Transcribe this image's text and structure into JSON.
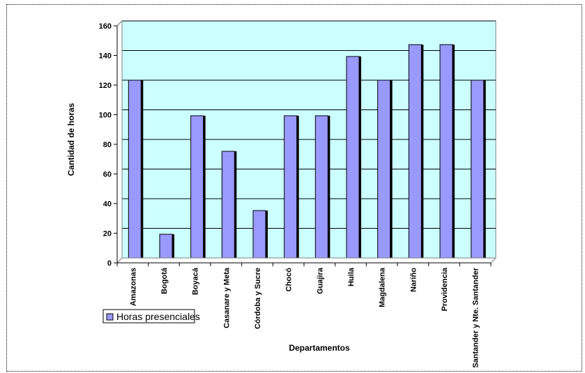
{
  "chart_data": {
    "type": "bar",
    "title": "",
    "xlabel": "Departamentos",
    "ylabel": "Cantidad de horas",
    "ylim": [
      0,
      160
    ],
    "yticks": [
      0,
      20,
      40,
      60,
      80,
      100,
      120,
      140,
      160
    ],
    "grid": true,
    "legend_position": "left",
    "categories": [
      "Amazonas",
      "Bogotá",
      "Boyacá",
      "Casanare y Meta",
      "Córdoba y Sucre",
      "Chocó",
      "Guajira",
      "Huila",
      "Magdalena",
      "Nariño",
      "Providencia",
      "Santander y Nte. Santander"
    ],
    "series": [
      {
        "name": "Horas presenciales",
        "values": [
          120,
          16,
          96,
          72,
          32,
          96,
          96,
          136,
          120,
          144,
          144,
          120
        ]
      }
    ],
    "colors": {
      "plot_bg": "#ccffff",
      "bar_fill": "#9999ff",
      "bar_shadow": "#000000",
      "grid": "#000000"
    }
  }
}
